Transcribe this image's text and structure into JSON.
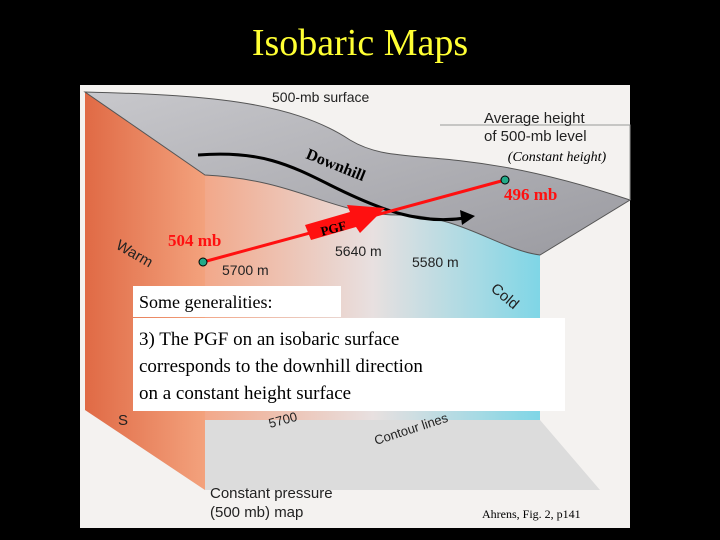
{
  "title": "Isobaric Maps",
  "figure": {
    "labels": {
      "surface": "500-mb surface",
      "avg_height_1": "Average height",
      "avg_height_2": "of 500-mb level",
      "constant_height": "(Constant height)",
      "downhill": "Downhill",
      "high_p": "496 mb",
      "low_p": "504 mb",
      "pgf": "PGF",
      "warm": "Warm",
      "h5640": "5640 m",
      "h5580": "5580 m",
      "h5700": "5700 m",
      "cold": "Cold",
      "south": "S",
      "h5700_base": "5700",
      "contour": "Contour lines",
      "base_1": "Constant pressure",
      "base_2": "(500 mb) map"
    }
  },
  "callouts": {
    "heading": "Some generalities:",
    "body": [
      "3) The PGF on an isobaric surface",
      "corresponds to the downhill direction",
      "on a constant height surface"
    ]
  },
  "credit": "Ahrens, Fig. 2, p141"
}
